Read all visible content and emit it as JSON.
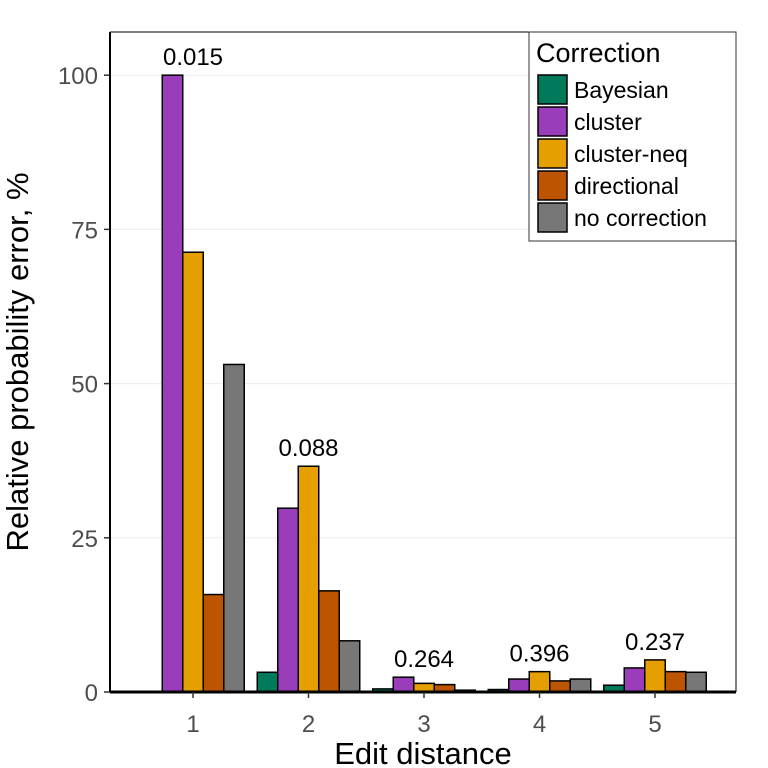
{
  "chart_data": {
    "type": "bar",
    "title": "",
    "xlabel": "Edit distance",
    "ylabel": "Relative probability error, %",
    "categories": [
      "1",
      "2",
      "3",
      "4",
      "5"
    ],
    "ylim": [
      0,
      107
    ],
    "yticks": [
      0,
      25,
      50,
      75,
      100
    ],
    "grid": true,
    "legend_position": "top-right",
    "legend_title": "Correction",
    "series": [
      {
        "name": "Bayesian",
        "color": "#017a5c",
        "values": [
          0.1,
          3.2,
          0.5,
          0.4,
          1.1
        ]
      },
      {
        "name": "cluster",
        "color": "#9a3dba",
        "values": [
          100,
          29.8,
          2.4,
          2.1,
          3.9
        ]
      },
      {
        "name": "cluster-neq",
        "color": "#e69f00",
        "values": [
          71.3,
          36.6,
          1.4,
          3.3,
          5.2
        ]
      },
      {
        "name": "directional",
        "color": "#bd5500",
        "values": [
          15.8,
          16.4,
          1.2,
          1.8,
          3.3
        ]
      },
      {
        "name": "no correction",
        "color": "#777777",
        "values": [
          53.1,
          8.3,
          0.3,
          2.1,
          3.2
        ]
      }
    ],
    "annotations": [
      "0.015",
      "0.088",
      "0.264",
      "0.396",
      "0.237"
    ]
  }
}
